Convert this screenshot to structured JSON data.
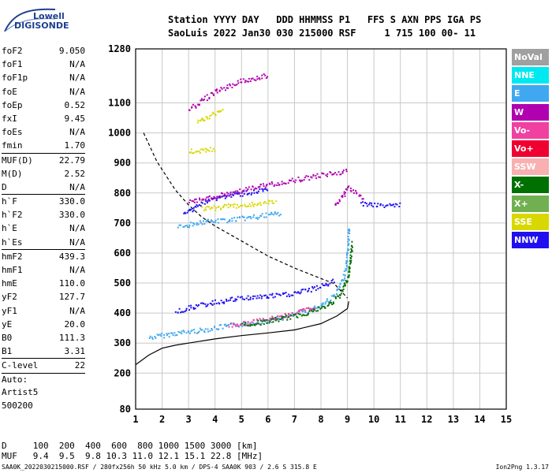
{
  "logo": {
    "line1": "Lowell",
    "line2": "DIGISONDE"
  },
  "header": {
    "line1": "Station YYYY DAY   DDD HHMMSS P1   FFS S AXN PPS IGA PS",
    "line2": "SaoLuis 2022 Jan30 030 215000 RSF     1 715 100 00- 11"
  },
  "params": {
    "g1": [
      {
        "label": "foF2",
        "value": "9.050"
      },
      {
        "label": "foF1",
        "value": "N/A"
      },
      {
        "label": "foF1p",
        "value": "N/A"
      },
      {
        "label": "foE",
        "value": "N/A"
      },
      {
        "label": "foEp",
        "value": "0.52"
      },
      {
        "label": "fxI",
        "value": "9.45"
      },
      {
        "label": "foEs",
        "value": "N/A"
      },
      {
        "label": "fmin",
        "value": "1.70"
      }
    ],
    "g2": [
      {
        "label": "MUF(D)",
        "value": "22.79"
      },
      {
        "label": "M(D)",
        "value": "2.52"
      },
      {
        "label": "D",
        "value": "N/A"
      }
    ],
    "g3": [
      {
        "label": "h`F",
        "value": "330.0"
      },
      {
        "label": "h`F2",
        "value": "330.0"
      },
      {
        "label": "h`E",
        "value": "N/A"
      },
      {
        "label": "h`Es",
        "value": "N/A"
      }
    ],
    "g4": [
      {
        "label": "hmF2",
        "value": "439.3"
      },
      {
        "label": "hmF1",
        "value": "N/A"
      },
      {
        "label": "hmE",
        "value": "110.0"
      },
      {
        "label": "yF2",
        "value": "127.7"
      },
      {
        "label": "yF1",
        "value": "N/A"
      },
      {
        "label": "yE",
        "value": "20.0"
      },
      {
        "label": "B0",
        "value": "111.3"
      },
      {
        "label": "B1",
        "value": "3.31"
      }
    ],
    "clevel": {
      "label": "C-level",
      "value": "22"
    },
    "auto": [
      "Auto:",
      "Artist5",
      "500200"
    ]
  },
  "legend": [
    {
      "label": "NoVal",
      "color": "#a0a0a0"
    },
    {
      "label": "NNE",
      "color": "#00e8f0"
    },
    {
      "label": "E",
      "color": "#40a8f0"
    },
    {
      "label": "W",
      "color": "#b000b0"
    },
    {
      "label": "Vo-",
      "color": "#f040a0"
    },
    {
      "label": "Vo+",
      "color": "#f00030"
    },
    {
      "label": "SSW",
      "color": "#f8b0b0"
    },
    {
      "label": "X-",
      "color": "#007000"
    },
    {
      "label": "X+",
      "color": "#70b050"
    },
    {
      "label": "SSE",
      "color": "#d8d800"
    },
    {
      "label": "NNW",
      "color": "#2010f0"
    }
  ],
  "bottom": {
    "d_line": "D     100  200  400  600  800 1000 1500 3000 [km]",
    "muf_line": "MUF   9.4  9.5  9.8 10.3 11.0 12.1 15.1 22.8 [MHz]"
  },
  "footer": {
    "left": "SAA0K_2022030215000.RSF / 280fx256h 50 kHz 5.0 km / DPS-4 SAA0K 903 / 2.6 S 315.8 E",
    "right": "Ion2Png 1.3.17"
  },
  "chart_data": {
    "type": "scatter",
    "x_unit": "MHz",
    "y_unit": "km",
    "xlim": [
      1,
      15
    ],
    "ylim": [
      80,
      1280
    ],
    "x_ticks": [
      1,
      2,
      3,
      4,
      5,
      6,
      7,
      8,
      9,
      10,
      11,
      12,
      13,
      14,
      15
    ],
    "y_ticks": [
      80,
      200,
      300,
      400,
      500,
      600,
      700,
      800,
      900,
      1000,
      1100,
      1280
    ],
    "grid": true,
    "ne_profile": [
      [
        1.0,
        228
      ],
      [
        1.5,
        260
      ],
      [
        2.0,
        283
      ],
      [
        2.5,
        293
      ],
      [
        3.0,
        300
      ],
      [
        4.0,
        314
      ],
      [
        5.0,
        325
      ],
      [
        6.0,
        334
      ],
      [
        7.0,
        344
      ],
      [
        8.0,
        365
      ],
      [
        8.6,
        390
      ],
      [
        9.0,
        415
      ],
      [
        9.05,
        439
      ]
    ],
    "muf_curve": [
      [
        1.3,
        1000
      ],
      [
        1.8,
        905
      ],
      [
        2.5,
        810
      ],
      [
        3.0,
        760
      ],
      [
        3.5,
        720
      ],
      [
        4.0,
        690
      ],
      [
        5.0,
        640
      ],
      [
        6.0,
        590
      ],
      [
        7.0,
        550
      ],
      [
        8.0,
        515
      ],
      [
        8.5,
        498
      ],
      [
        9.0,
        450
      ]
    ],
    "echo_traces": [
      {
        "mode": "E",
        "points": [
          [
            1.5,
            320
          ],
          [
            2.5,
            335
          ],
          [
            3.5,
            345
          ],
          [
            4.5,
            360
          ],
          [
            5.5,
            370
          ],
          [
            6.5,
            385
          ],
          [
            7.5,
            410
          ],
          [
            8.0,
            430
          ],
          [
            8.5,
            460
          ],
          [
            8.8,
            510
          ],
          [
            8.95,
            560
          ],
          [
            9.0,
            620
          ],
          [
            9.05,
            690
          ]
        ]
      },
      {
        "mode": "Vo-",
        "points": [
          [
            4.5,
            360
          ],
          [
            5.5,
            373
          ],
          [
            6.5,
            390
          ],
          [
            7.3,
            410
          ],
          [
            7.8,
            420
          ]
        ]
      },
      {
        "mode": "X-",
        "points": [
          [
            5.0,
            362
          ],
          [
            6.0,
            375
          ],
          [
            7.0,
            392
          ],
          [
            7.7,
            410
          ],
          [
            8.2,
            425
          ],
          [
            8.7,
            460
          ],
          [
            9.0,
            520
          ],
          [
            9.1,
            580
          ],
          [
            9.15,
            640
          ]
        ]
      },
      {
        "mode": "NNW",
        "points": [
          [
            2.5,
            405
          ],
          [
            3.0,
            420
          ],
          [
            4.0,
            438
          ],
          [
            5.0,
            452
          ],
          [
            6.0,
            458
          ],
          [
            6.8,
            465
          ],
          [
            7.5,
            478
          ],
          [
            8.0,
            492
          ],
          [
            8.5,
            510
          ]
        ]
      },
      {
        "mode": "E",
        "points": [
          [
            2.6,
            690
          ],
          [
            3.5,
            705
          ],
          [
            4.5,
            712
          ],
          [
            5.5,
            722
          ],
          [
            6.5,
            735
          ]
        ]
      },
      {
        "mode": "NNW",
        "points": [
          [
            2.8,
            730
          ],
          [
            3.3,
            760
          ],
          [
            4.0,
            785
          ],
          [
            5.0,
            800
          ],
          [
            6.0,
            812
          ]
        ]
      },
      {
        "mode": "W",
        "points": [
          [
            3.0,
            770
          ],
          [
            4.0,
            790
          ],
          [
            5.0,
            810
          ],
          [
            6.0,
            830
          ],
          [
            7.0,
            845
          ],
          [
            8.0,
            862
          ],
          [
            9.0,
            875
          ]
        ]
      },
      {
        "mode": "SSE",
        "points": [
          [
            3.5,
            748
          ],
          [
            4.5,
            758
          ],
          [
            5.5,
            765
          ],
          [
            6.3,
            772
          ]
        ]
      },
      {
        "mode": "W",
        "points": [
          [
            8.5,
            760
          ],
          [
            8.8,
            790
          ],
          [
            9.0,
            820
          ],
          [
            9.3,
            800
          ],
          [
            9.6,
            785
          ]
        ]
      },
      {
        "mode": "NNW",
        "points": [
          [
            9.5,
            765
          ],
          [
            10.0,
            763
          ],
          [
            10.5,
            762
          ],
          [
            11.0,
            762
          ]
        ]
      },
      {
        "mode": "W",
        "points": [
          [
            3.0,
            1080
          ],
          [
            3.5,
            1110
          ],
          [
            4.0,
            1140
          ],
          [
            5.0,
            1175
          ],
          [
            6.0,
            1195
          ]
        ]
      },
      {
        "mode": "SSE",
        "points": [
          [
            3.3,
            1040
          ],
          [
            3.8,
            1060
          ],
          [
            4.3,
            1080
          ]
        ]
      },
      {
        "mode": "SSE",
        "points": [
          [
            3.0,
            940
          ],
          [
            3.5,
            945
          ],
          [
            4.0,
            950
          ]
        ]
      }
    ]
  }
}
